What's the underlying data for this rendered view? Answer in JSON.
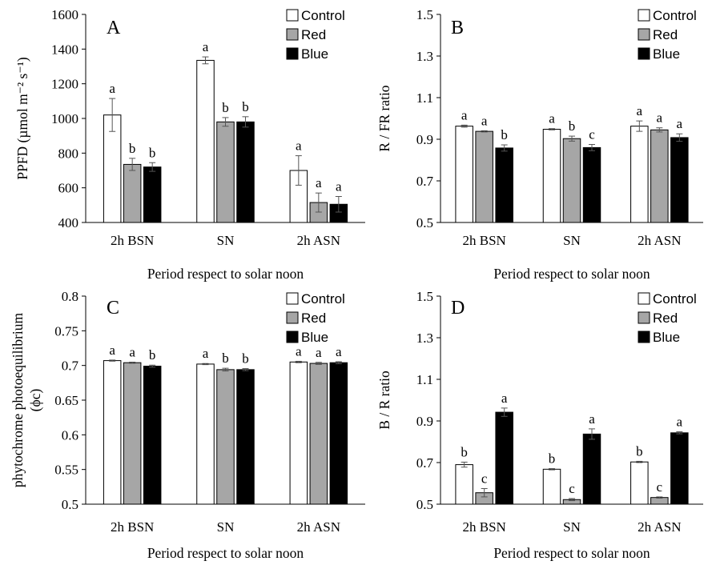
{
  "chart_data": [
    {
      "type": "bar",
      "panel": "A",
      "categories": [
        "2h BSN",
        "SN",
        "2h ASN"
      ],
      "series": [
        {
          "name": "Control",
          "color": "#ffffff",
          "values": [
            1020,
            1335,
            700
          ],
          "errors": [
            95,
            20,
            85
          ],
          "letters": [
            "a",
            "a",
            "a"
          ]
        },
        {
          "name": "Red",
          "color": "#a6a6a6",
          "values": [
            735,
            980,
            515
          ],
          "errors": [
            35,
            25,
            55
          ],
          "letters": [
            "b",
            "b",
            "a"
          ]
        },
        {
          "name": "Blue",
          "color": "#000000",
          "values": [
            720,
            980,
            505
          ],
          "errors": [
            25,
            30,
            45
          ],
          "letters": [
            "b",
            "b",
            "a"
          ]
        }
      ],
      "xlabel": "Period respect to solar noon",
      "ylabel": "PPFD (µmol m⁻² s⁻¹)",
      "ylim": [
        400,
        1600
      ],
      "yticks": [
        "400",
        "600",
        "800",
        "1000",
        "1200",
        "1400",
        "1600"
      ],
      "legend_position": "top-right"
    },
    {
      "type": "bar",
      "panel": "B",
      "categories": [
        "2h BSN",
        "SN",
        "2h ASN"
      ],
      "series": [
        {
          "name": "Control",
          "color": "#ffffff",
          "values": [
            0.963,
            0.948,
            0.963
          ],
          "errors": [
            0.005,
            0.003,
            0.025
          ],
          "letters": [
            "a",
            "a",
            "a"
          ]
        },
        {
          "name": "Red",
          "color": "#a6a6a6",
          "values": [
            0.938,
            0.903,
            0.945
          ],
          "errors": [
            0.003,
            0.012,
            0.01
          ],
          "letters": [
            "a",
            "b",
            "a"
          ]
        },
        {
          "name": "Blue",
          "color": "#000000",
          "values": [
            0.858,
            0.86,
            0.908
          ],
          "errors": [
            0.015,
            0.015,
            0.018
          ],
          "letters": [
            "b",
            "c",
            "a"
          ]
        }
      ],
      "xlabel": "Period respect to solar noon",
      "ylabel": "R / FR ratio",
      "ylim": [
        0.5,
        1.5
      ],
      "yticks": [
        "0.5",
        "0.7",
        "0.9",
        "1.1",
        "1.3",
        "1.5"
      ],
      "legend_position": "top-right"
    },
    {
      "type": "bar",
      "panel": "C",
      "categories": [
        "2h BSN",
        "SN",
        "2h ASN"
      ],
      "series": [
        {
          "name": "Control",
          "color": "#ffffff",
          "values": [
            0.707,
            0.702,
            0.705
          ],
          "errors": [
            0.0008,
            0.0008,
            0.001
          ],
          "letters": [
            "a",
            "a",
            "a"
          ]
        },
        {
          "name": "Red",
          "color": "#a6a6a6",
          "values": [
            0.704,
            0.694,
            0.703
          ],
          "errors": [
            0.0008,
            0.002,
            0.0015
          ],
          "letters": [
            "a",
            "b",
            "a"
          ]
        },
        {
          "name": "Blue",
          "color": "#000000",
          "values": [
            0.699,
            0.694,
            0.704
          ],
          "errors": [
            0.0015,
            0.0015,
            0.0015
          ],
          "letters": [
            "b",
            "b",
            "a"
          ]
        }
      ],
      "xlabel": "Period respect to solar noon",
      "ylabel": "phytochrome photoequilibrium (ϕc)",
      "ylim": [
        0.5,
        0.8
      ],
      "yticks": [
        "0.5",
        "0.55",
        "0.6",
        "0.65",
        "0.7",
        "0.75",
        "0.8"
      ],
      "legend_position": "top-right"
    },
    {
      "type": "bar",
      "panel": "D",
      "categories": [
        "2h BSN",
        "SN",
        "2h ASN"
      ],
      "series": [
        {
          "name": "Control",
          "color": "#ffffff",
          "values": [
            0.69,
            0.668,
            0.703
          ],
          "errors": [
            0.012,
            0.003,
            0.003
          ],
          "letters": [
            "b",
            "b",
            "b"
          ]
        },
        {
          "name": "Red",
          "color": "#a6a6a6",
          "values": [
            0.555,
            0.522,
            0.532
          ],
          "errors": [
            0.02,
            0.005,
            0.003
          ],
          "letters": [
            "c",
            "c",
            "c"
          ]
        },
        {
          "name": "Blue",
          "color": "#000000",
          "values": [
            0.942,
            0.837,
            0.843
          ],
          "errors": [
            0.02,
            0.025,
            0.005
          ],
          "letters": [
            "a",
            "a",
            "a"
          ]
        }
      ],
      "xlabel": "Period respect to solar noon",
      "ylabel": "B / R ratio",
      "ylim": [
        0.5,
        1.5
      ],
      "yticks": [
        "0.5",
        "0.7",
        "0.9",
        "1.1",
        "1.3",
        "1.5"
      ],
      "legend_position": "top-right"
    }
  ]
}
